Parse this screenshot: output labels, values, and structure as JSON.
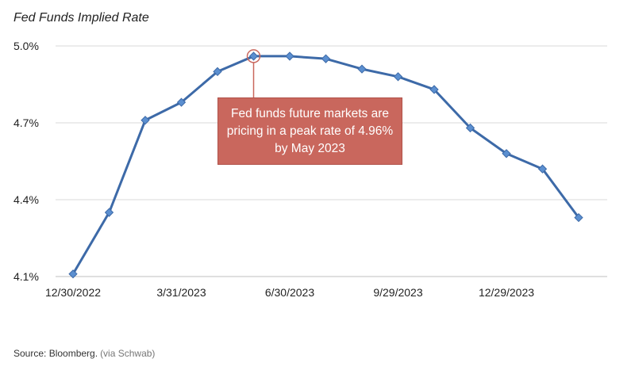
{
  "title": "Fed Funds Implied Rate",
  "source": {
    "text": "Source: Bloomberg.",
    "via": "(via Schwab)"
  },
  "callout": {
    "text": "Fed funds future markets are pricing in a peak rate of 4.96% by May 2023"
  },
  "colors": {
    "line": "#3d6aa8",
    "marker": "#5b8fd0",
    "callout_fill": "#c9675d",
    "highlight": "#c9675d"
  },
  "chart_data": {
    "type": "line",
    "title": "Fed Funds Implied Rate",
    "xlabel": "",
    "ylabel": "",
    "x_tick_labels": [
      "12/30/2022",
      "3/31/2023",
      "6/30/2023",
      "9/29/2023",
      "12/29/2023"
    ],
    "y_ticks": [
      4.1,
      4.4,
      4.7,
      5.0
    ],
    "y_tick_labels": [
      "4.1%",
      "4.4%",
      "4.7%",
      "5.0%"
    ],
    "ylim": [
      4.1,
      5.0
    ],
    "grid": true,
    "highlight_index": 6,
    "series": [
      {
        "values": [
          4.11,
          4.35,
          4.71,
          4.78,
          4.9,
          4.96,
          4.96,
          4.95,
          4.91,
          4.88,
          4.83,
          4.68,
          4.58,
          4.52,
          4.33
        ]
      }
    ]
  }
}
